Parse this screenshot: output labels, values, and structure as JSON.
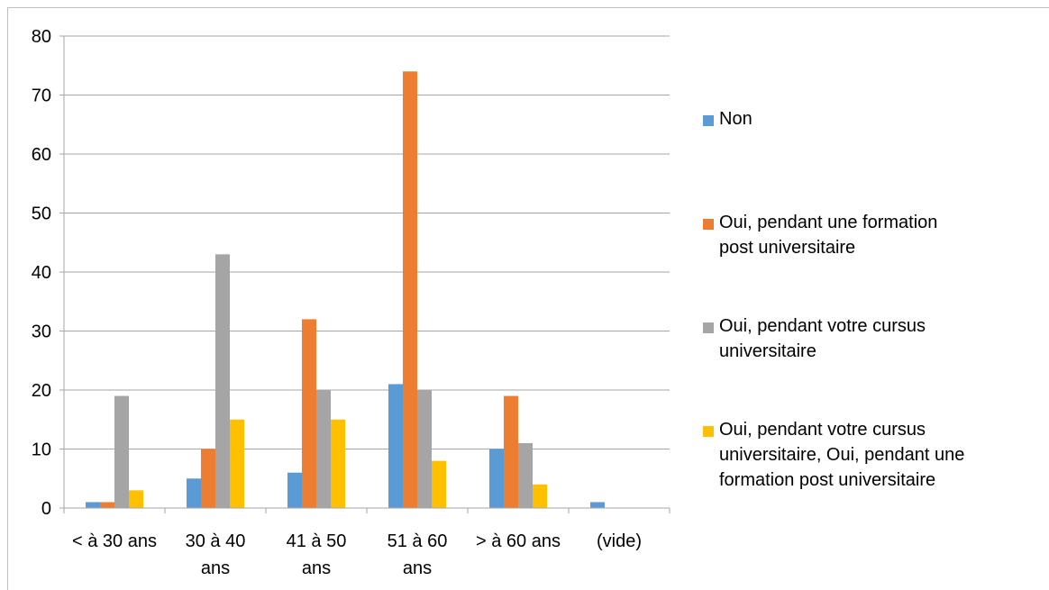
{
  "chart_data": {
    "type": "bar",
    "categories": [
      "< à 30 ans",
      "30 à 40 ans",
      "41 à 50 ans",
      "51 à 60 ans",
      "> à 60 ans",
      "(vide)"
    ],
    "category_lines": [
      [
        "< à 30 ans"
      ],
      [
        "30 à 40",
        "ans"
      ],
      [
        "41 à 50",
        "ans"
      ],
      [
        "51 à 60",
        "ans"
      ],
      [
        "> à 60 ans"
      ],
      [
        "(vide)"
      ]
    ],
    "series": [
      {
        "name": "Non",
        "color": "#5b9bd5",
        "values": [
          1,
          5,
          6,
          21,
          10,
          1
        ]
      },
      {
        "name": "Oui, pendant une formation post universitaire",
        "color": "#ed7d31",
        "values": [
          1,
          10,
          32,
          74,
          19,
          null
        ]
      },
      {
        "name": "Oui, pendant votre cursus universitaire",
        "color": "#a5a5a5",
        "values": [
          19,
          43,
          20,
          20,
          11,
          null
        ]
      },
      {
        "name": "Oui, pendant votre cursus universitaire, Oui, pendant une formation post universitaire",
        "color": "#ffc000",
        "values": [
          3,
          15,
          15,
          8,
          4,
          null
        ]
      }
    ],
    "legend_lines": [
      [
        "Non"
      ],
      [
        "Oui, pendant une formation",
        "post universitaire"
      ],
      [
        "Oui, pendant votre cursus",
        "universitaire"
      ],
      [
        "Oui, pendant votre cursus",
        "universitaire, Oui, pendant une",
        "formation post universitaire"
      ]
    ],
    "ylim": [
      0,
      80
    ],
    "yticks": [
      0,
      10,
      20,
      30,
      40,
      50,
      60,
      70,
      80
    ],
    "grid": true,
    "legend_position": "right"
  }
}
